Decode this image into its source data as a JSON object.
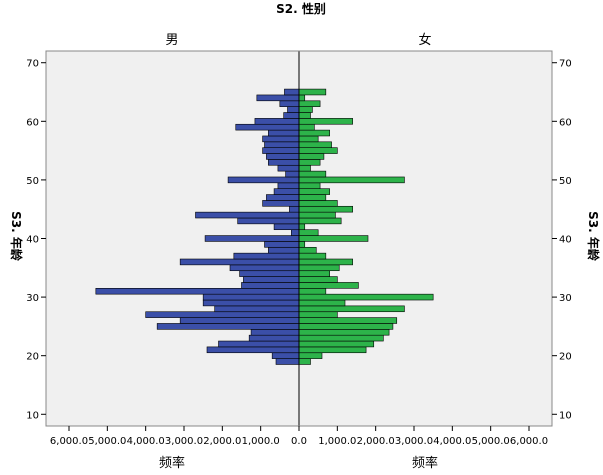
{
  "chart_data": {
    "type": "bar",
    "layout": "population-pyramid",
    "title": "S2. 性别",
    "panels": [
      "男",
      "女"
    ],
    "xlabel": "频率",
    "ylabel": "S3. 年龄",
    "xlim": [
      0,
      6000
    ],
    "x_ticks": [
      "6,000.0",
      "5,000.0",
      "4,000.0",
      "3,000.0",
      "2,000.0",
      "1,000.0",
      "0.0",
      "1,000.0",
      "2,000.0",
      "3,000.0",
      "4,000.0",
      "5,000.0",
      "6,000.0"
    ],
    "ylim": [
      8,
      72
    ],
    "y_ticks": [
      10,
      20,
      30,
      40,
      50,
      60,
      70
    ],
    "grid": false,
    "colors": {
      "男": "#3b4fa8",
      "女": "#2db34a",
      "plot_bg": "#f0f0f0"
    },
    "ages": [
      19,
      20,
      21,
      22,
      23,
      24,
      25,
      26,
      27,
      28,
      29,
      30,
      31,
      32,
      33,
      34,
      35,
      36,
      37,
      38,
      39,
      40,
      41,
      42,
      43,
      44,
      45,
      46,
      47,
      48,
      49,
      50,
      51,
      52,
      53,
      54,
      55,
      56,
      57,
      58,
      59,
      60,
      61,
      62,
      63,
      64,
      65
    ],
    "series": [
      {
        "name": "男",
        "values": [
          600,
          700,
          2400,
          2100,
          1300,
          1250,
          3700,
          3100,
          4000,
          2200,
          2500,
          2500,
          5300,
          1500,
          1450,
          1550,
          1800,
          3100,
          1700,
          800,
          900,
          2450,
          200,
          650,
          1600,
          2700,
          250,
          950,
          850,
          650,
          550,
          1850,
          350,
          550,
          800,
          850,
          950,
          900,
          950,
          800,
          1650,
          1150,
          400,
          300,
          500,
          1100,
          380
        ]
      },
      {
        "name": "女",
        "values": [
          300,
          600,
          1750,
          1950,
          2200,
          2350,
          2450,
          2550,
          1000,
          2750,
          1200,
          3500,
          700,
          1550,
          1000,
          800,
          1050,
          1400,
          700,
          450,
          150,
          1800,
          500,
          150,
          1100,
          950,
          1400,
          1000,
          700,
          800,
          550,
          2750,
          700,
          300,
          550,
          650,
          1000,
          850,
          500,
          800,
          400,
          1400,
          300,
          350,
          550,
          150,
          700
        ]
      }
    ]
  }
}
